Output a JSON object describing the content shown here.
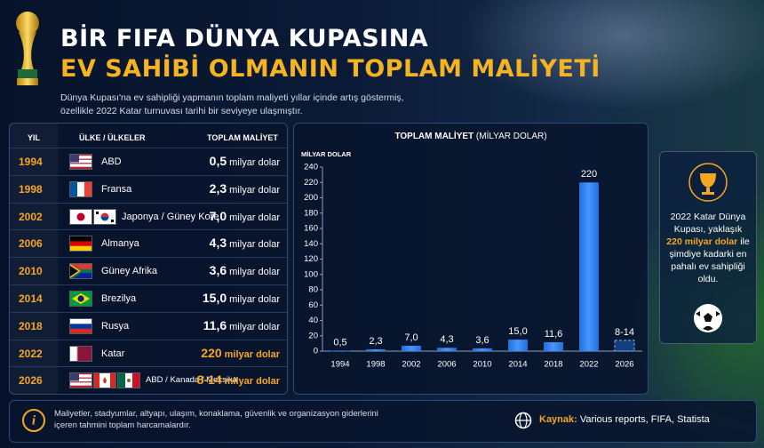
{
  "header": {
    "title_lines": [
      "BİR FIFA DÜNYA KUPASINA",
      "EV SAHİBİ OLMANIN TOPLAM MALİYETİ"
    ],
    "subtitle_lines": [
      "Dünya Kupası'na ev sahipliği yapmanın toplam maliyeti yıllar içinde artış göstermiş,",
      "özellikle 2022 Katar turnuvası tarihi bir seviyeye ulaşmıştır."
    ]
  },
  "table": {
    "columns": [
      "YIL",
      "ÜLKE / ÜLKELER",
      "TOPLAM MALİYET"
    ],
    "unit": "milyar dolar",
    "rows": [
      {
        "year": "1994",
        "country": "ABD",
        "cost": "0,5",
        "highlight": false
      },
      {
        "year": "1998",
        "country": "Fransa",
        "cost": "2,3",
        "highlight": false
      },
      {
        "year": "2002",
        "country": "Japonya / Güney Kore",
        "cost": "7,0",
        "highlight": false
      },
      {
        "year": "2006",
        "country": "Almanya",
        "cost": "4,3",
        "highlight": false
      },
      {
        "year": "2010",
        "country": "Güney Afrika",
        "cost": "3,6",
        "highlight": false
      },
      {
        "year": "2014",
        "country": "Brezilya",
        "cost": "15,0",
        "highlight": false
      },
      {
        "year": "2018",
        "country": "Rusya",
        "cost": "11,6",
        "highlight": false
      },
      {
        "year": "2022",
        "country": "Katar",
        "cost": "220",
        "highlight": true
      },
      {
        "year": "2026",
        "country": "ABD / Kanada / Meksika",
        "cost": "8-14",
        "highlight": true
      }
    ]
  },
  "chart_data": {
    "type": "bar",
    "title": "TOPLAM MALİYET",
    "subtitle": "(MİLYAR DOLAR)",
    "y_label": "MİLYAR DOLAR",
    "categories": [
      "1994",
      "1998",
      "2002",
      "2006",
      "2010",
      "2014",
      "2018",
      "2022",
      "2026"
    ],
    "values": [
      0.5,
      2.3,
      7.0,
      4.3,
      3.6,
      15.0,
      11.6,
      220,
      14
    ],
    "value_labels": [
      "0,5",
      "2,3",
      "7,0",
      "4,3",
      "3,6",
      "15,0",
      "11,6",
      "220",
      "8-14"
    ],
    "bar_styles": [
      "solid",
      "solid",
      "solid",
      "solid",
      "solid",
      "solid",
      "solid",
      "solid",
      "dashed"
    ],
    "color": "#1f6fdc",
    "ylim": [
      0,
      240
    ],
    "yticks": [
      0,
      20,
      40,
      60,
      80,
      100,
      120,
      140,
      160,
      180,
      200,
      220,
      240
    ],
    "grid": false
  },
  "note": {
    "before": "2022 Katar Dünya Kupası, yaklaşık",
    "highlight": "220 milyar dolar",
    "after": "ile şimdiye kadarki en pahalı ev sahipliği oldu."
  },
  "footer": {
    "note_lines": [
      "Maliyetler, stadyumlar, altyapı, ulaşım, konaklama, güvenlik ve organizasyon giderlerini",
      "içeren tahmini toplam harcamalardır."
    ],
    "source_label": "Kaynak:",
    "source": "Various reports, FIFA, Statista"
  }
}
